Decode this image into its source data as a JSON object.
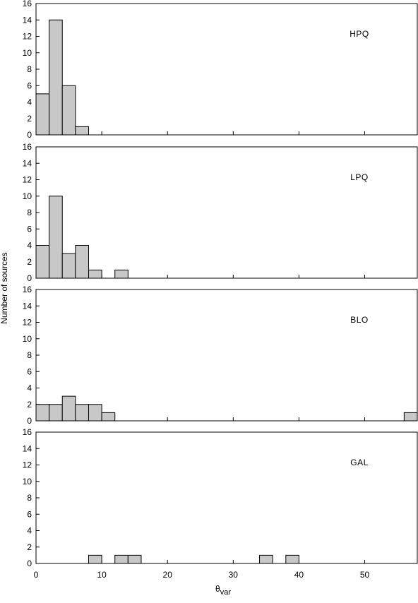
{
  "chart_data": {
    "type": "bar",
    "ylabel": "Number of sources",
    "xlabel_main": "θ",
    "xlabel_sub": "var",
    "xlim": [
      0,
      58
    ],
    "ylim": [
      0,
      16
    ],
    "bin_width": 2,
    "x_ticks": [
      0,
      10,
      20,
      30,
      40,
      50
    ],
    "x_tick_labels": [
      "0",
      "10",
      "20",
      "30",
      "40",
      "50"
    ],
    "y_ticks": [
      0,
      2,
      4,
      6,
      8,
      10,
      12,
      14,
      16
    ],
    "y_tick_labels": [
      "0",
      "2",
      "4",
      "6",
      "8",
      "10",
      "12",
      "14",
      "16"
    ],
    "bar_color": "#c8c8c8",
    "panels": [
      {
        "label": "HPQ",
        "bins": [
          {
            "x0": 0,
            "x1": 2,
            "count": 5
          },
          {
            "x0": 2,
            "x1": 4,
            "count": 14
          },
          {
            "x0": 4,
            "x1": 6,
            "count": 6
          },
          {
            "x0": 6,
            "x1": 8,
            "count": 1
          }
        ]
      },
      {
        "label": "LPQ",
        "bins": [
          {
            "x0": 0,
            "x1": 2,
            "count": 4
          },
          {
            "x0": 2,
            "x1": 4,
            "count": 10
          },
          {
            "x0": 4,
            "x1": 6,
            "count": 3
          },
          {
            "x0": 6,
            "x1": 8,
            "count": 4
          },
          {
            "x0": 8,
            "x1": 10,
            "count": 1
          },
          {
            "x0": 12,
            "x1": 14,
            "count": 1
          }
        ]
      },
      {
        "label": "BLO",
        "bins": [
          {
            "x0": 0,
            "x1": 2,
            "count": 2
          },
          {
            "x0": 2,
            "x1": 4,
            "count": 2
          },
          {
            "x0": 4,
            "x1": 6,
            "count": 3
          },
          {
            "x0": 6,
            "x1": 8,
            "count": 2
          },
          {
            "x0": 8,
            "x1": 10,
            "count": 2
          },
          {
            "x0": 10,
            "x1": 12,
            "count": 1
          },
          {
            "x0": 56,
            "x1": 58,
            "count": 1
          }
        ]
      },
      {
        "label": "GAL",
        "bins": [
          {
            "x0": 8,
            "x1": 10,
            "count": 1
          },
          {
            "x0": 12,
            "x1": 14,
            "count": 1
          },
          {
            "x0": 14,
            "x1": 16,
            "count": 1
          },
          {
            "x0": 34,
            "x1": 36,
            "count": 1
          },
          {
            "x0": 38,
            "x1": 40,
            "count": 1
          }
        ]
      }
    ]
  }
}
